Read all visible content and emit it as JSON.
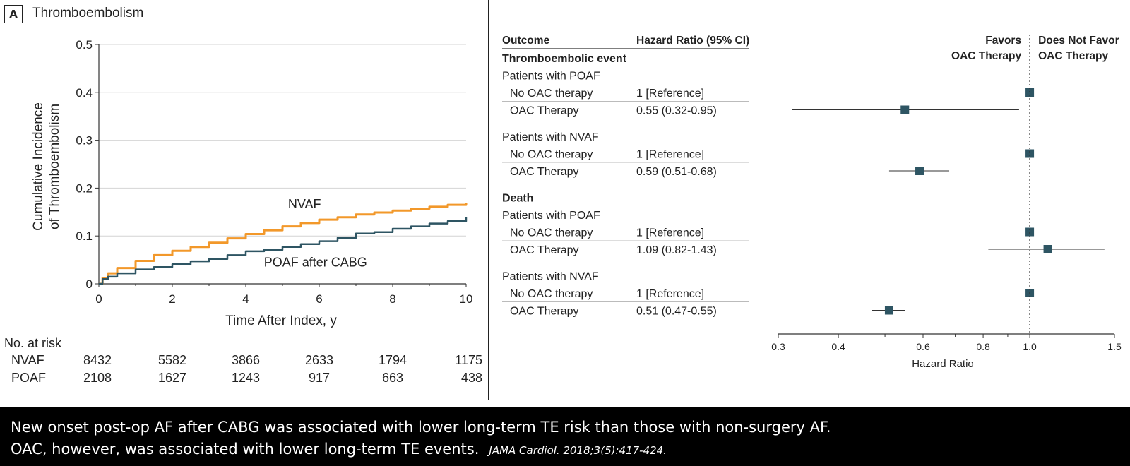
{
  "panel": {
    "letter": "A",
    "title": "Thromboembolism"
  },
  "km_chart": {
    "type": "line",
    "ylabel_line1": "Cumulative Incidence",
    "ylabel_line2": "of Thromboembolism",
    "xlabel": "Time After Index, y",
    "xlim": [
      0,
      10
    ],
    "ylim": [
      0,
      0.5
    ],
    "xticks": [
      "0",
      "2",
      "4",
      "6",
      "8",
      "10"
    ],
    "yticks": [
      "0",
      "0.1",
      "0.2",
      "0.3",
      "0.4",
      "0.5"
    ],
    "grid": true,
    "series": [
      {
        "name": "NVAF",
        "color": "#f2982a",
        "x": [
          0,
          0.1,
          0.25,
          0.5,
          1,
          1.5,
          2,
          2.5,
          3,
          3.5,
          4,
          4.5,
          5,
          5.5,
          6,
          6.5,
          7,
          7.5,
          8,
          8.5,
          9,
          9.5,
          10
        ],
        "y": [
          0,
          0.012,
          0.022,
          0.033,
          0.048,
          0.06,
          0.069,
          0.077,
          0.086,
          0.095,
          0.104,
          0.112,
          0.12,
          0.127,
          0.134,
          0.139,
          0.145,
          0.149,
          0.153,
          0.157,
          0.161,
          0.165,
          0.169
        ]
      },
      {
        "name": "POAF after CABG",
        "color": "#2e5563",
        "x": [
          0,
          0.1,
          0.25,
          0.5,
          1,
          1.5,
          2,
          2.5,
          3,
          3.5,
          4,
          4.5,
          5,
          5.5,
          6,
          6.5,
          7,
          7.5,
          8,
          8.5,
          9,
          9.5,
          10
        ],
        "y": [
          0,
          0.01,
          0.015,
          0.022,
          0.03,
          0.035,
          0.041,
          0.047,
          0.052,
          0.06,
          0.068,
          0.071,
          0.077,
          0.083,
          0.089,
          0.096,
          0.105,
          0.108,
          0.115,
          0.12,
          0.126,
          0.131,
          0.139
        ]
      }
    ],
    "series_labels": [
      {
        "text": "NVAF",
        "at_x": 5.6,
        "at_y": 0.158
      },
      {
        "text": "POAF after CABG",
        "at_x": 5.9,
        "at_y": 0.036
      }
    ]
  },
  "risk_table": {
    "header": "No. at risk",
    "rows": [
      {
        "label": "NVAF",
        "values": [
          "8432",
          "5582",
          "3866",
          "2633",
          "1794",
          "1175"
        ]
      },
      {
        "label": "POAF",
        "values": [
          "2108",
          "1627",
          "1243",
          "917",
          "663",
          "438"
        ]
      }
    ]
  },
  "forest": {
    "type": "scatter",
    "col_outcome": "Outcome",
    "col_hr": "Hazard Ratio (95% CI)",
    "favors_left_1": "Favors",
    "favors_left_2": "OAC Therapy",
    "favors_right_1": "Does Not Favor",
    "favors_right_2": "OAC Therapy",
    "xlabel": "Hazard Ratio",
    "xlim": [
      0.3,
      1.5
    ],
    "scale": "log",
    "xticks": [
      {
        "value": 0.3,
        "label": "0.3"
      },
      {
        "value": 0.4,
        "label": "0.4"
      },
      {
        "value": 0.6,
        "label": "0.6"
      },
      {
        "value": 0.8,
        "label": "0.8"
      },
      {
        "value": 1.0,
        "label": "1.0"
      },
      {
        "value": 1.5,
        "label": "1.5"
      }
    ],
    "minor_ticks": [
      0.5,
      0.7,
      0.9
    ],
    "reference_line": 1.0,
    "marker_color": "#2e5563",
    "rows": [
      {
        "kind": "group",
        "label": "Thromboembolic event"
      },
      {
        "kind": "sub",
        "label": "Patients with POAF"
      },
      {
        "kind": "item",
        "label": "No OAC therapy",
        "hr_text": "1 [Reference]",
        "hr": 1.0,
        "lo": null,
        "hi": null
      },
      {
        "kind": "item",
        "label": "OAC Therapy",
        "hr_text": "0.55 (0.32-0.95)",
        "hr": 0.55,
        "lo": 0.32,
        "hi": 0.95
      },
      {
        "kind": "gap"
      },
      {
        "kind": "sub",
        "label": "Patients with NVAF"
      },
      {
        "kind": "item",
        "label": "No OAC therapy",
        "hr_text": "1 [Reference]",
        "hr": 1.0,
        "lo": null,
        "hi": null
      },
      {
        "kind": "item",
        "label": "OAC Therapy",
        "hr_text": "0.59 (0.51-0.68)",
        "hr": 0.59,
        "lo": 0.51,
        "hi": 0.68
      },
      {
        "kind": "gap"
      },
      {
        "kind": "group",
        "label": "Death"
      },
      {
        "kind": "sub",
        "label": "Patients with POAF"
      },
      {
        "kind": "item",
        "label": "No OAC therapy",
        "hr_text": "1 [Reference]",
        "hr": 1.0,
        "lo": null,
        "hi": null
      },
      {
        "kind": "item",
        "label": "OAC Therapy",
        "hr_text": "1.09 (0.82-1.43)",
        "hr": 1.09,
        "lo": 0.82,
        "hi": 1.43
      },
      {
        "kind": "gap"
      },
      {
        "kind": "sub",
        "label": "Patients with NVAF"
      },
      {
        "kind": "item",
        "label": "No OAC therapy",
        "hr_text": "1 [Reference]",
        "hr": 1.0,
        "lo": null,
        "hi": null
      },
      {
        "kind": "item",
        "label": "OAC Therapy",
        "hr_text": "0.51 (0.47-0.55)",
        "hr": 0.51,
        "lo": 0.47,
        "hi": 0.55
      }
    ]
  },
  "caption": {
    "line1": "New onset post-op AF after CABG was associated with lower long-term TE risk than those with non-surgery AF.",
    "line2": "OAC, however, was associated with lower long-term TE events.",
    "citation": "JAMA Cardiol. 2018;3(5):417-424."
  }
}
